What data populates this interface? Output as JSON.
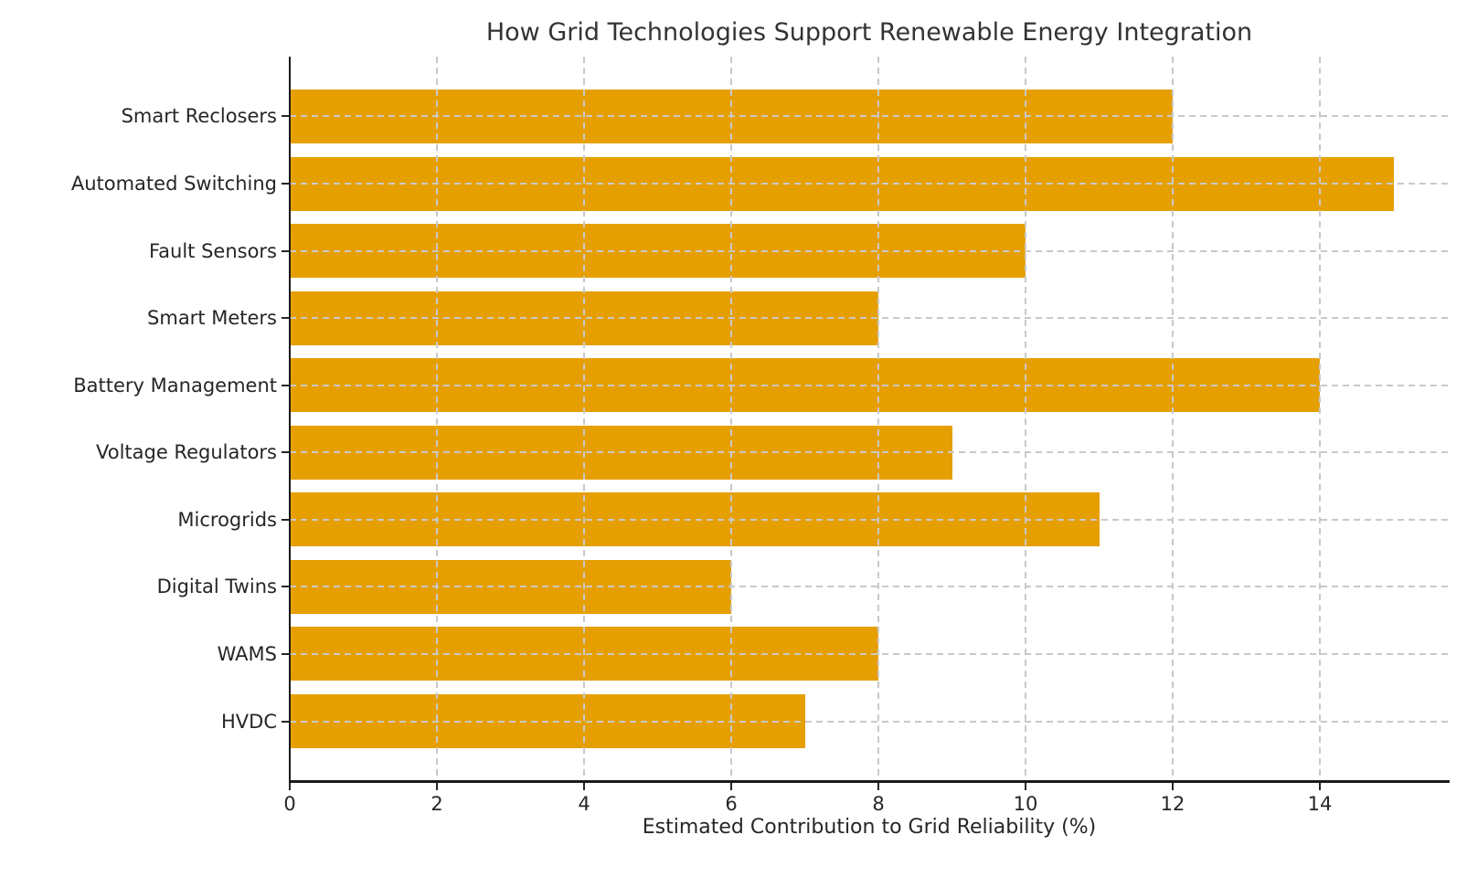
{
  "chart_data": {
    "type": "bar",
    "orientation": "horizontal",
    "title": "How Grid Technologies Support Renewable Energy Integration",
    "xlabel": "Estimated Contribution to Grid Reliability (%)",
    "ylabel": "",
    "categories": [
      "Smart Reclosers",
      "Automated Switching",
      "Fault Sensors",
      "Smart Meters",
      "Battery Management",
      "Voltage Regulators",
      "Microgrids",
      "Digital Twins",
      "WAMS",
      "HVDC"
    ],
    "values": [
      12,
      15,
      10,
      8,
      14,
      9,
      11,
      6,
      8,
      7
    ],
    "x_ticks": [
      0,
      2,
      4,
      6,
      8,
      10,
      12,
      14
    ],
    "xlim": [
      0,
      15.75
    ],
    "bar_color": "#E69F00",
    "grid_color": "#c9c9c9",
    "grid_style": "dashed, vertical at x-ticks and horizontal at each bar center, drawn above bars",
    "legend": "none",
    "background_color": "#ffffff"
  }
}
